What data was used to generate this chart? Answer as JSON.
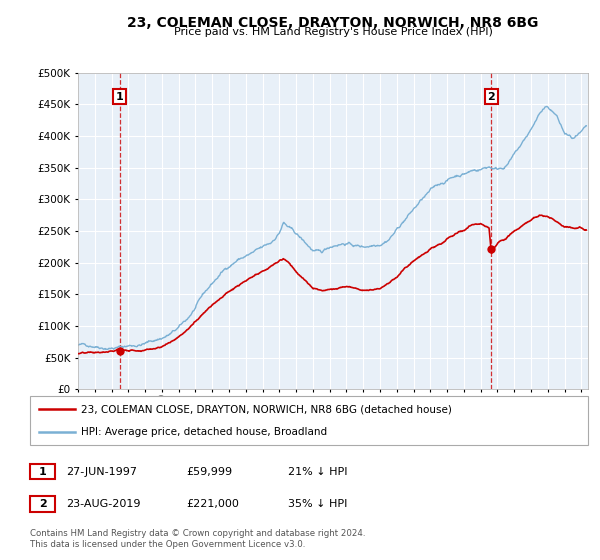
{
  "title": "23, COLEMAN CLOSE, DRAYTON, NORWICH, NR8 6BG",
  "subtitle": "Price paid vs. HM Land Registry's House Price Index (HPI)",
  "ylim": [
    0,
    500000
  ],
  "xlim_start": 1995.0,
  "xlim_end": 2025.4,
  "bg_color": "#e8f0f8",
  "fig_bg_color": "#ffffff",
  "grid_color": "#ffffff",
  "hpi_color": "#7ab0d4",
  "sale_color": "#cc0000",
  "sale1_x": 1997.48,
  "sale1_y": 59999,
  "sale2_x": 2019.64,
  "sale2_y": 221000,
  "legend_label1": "23, COLEMAN CLOSE, DRAYTON, NORWICH, NR8 6BG (detached house)",
  "legend_label2": "HPI: Average price, detached house, Broadland",
  "annotation1_label": "1",
  "annotation1_date": "27-JUN-1997",
  "annotation1_price": "£59,999",
  "annotation1_hpi": "21% ↓ HPI",
  "annotation2_label": "2",
  "annotation2_date": "23-AUG-2019",
  "annotation2_price": "£221,000",
  "annotation2_hpi": "35% ↓ HPI",
  "footnote": "Contains HM Land Registry data © Crown copyright and database right 2024.\nThis data is licensed under the Open Government Licence v3.0.",
  "hpi_anchors": [
    [
      1995.0,
      70000
    ],
    [
      1995.5,
      69000
    ],
    [
      1996.0,
      70500
    ],
    [
      1996.5,
      71000
    ],
    [
      1997.0,
      72000
    ],
    [
      1997.5,
      73000
    ],
    [
      1998.0,
      75000
    ],
    [
      1998.5,
      77000
    ],
    [
      1999.0,
      80000
    ],
    [
      1999.5,
      84000
    ],
    [
      2000.0,
      89000
    ],
    [
      2000.5,
      95000
    ],
    [
      2001.0,
      103000
    ],
    [
      2001.5,
      115000
    ],
    [
      2002.0,
      133000
    ],
    [
      2002.5,
      152000
    ],
    [
      2003.0,
      168000
    ],
    [
      2003.5,
      183000
    ],
    [
      2004.0,
      196000
    ],
    [
      2004.5,
      207000
    ],
    [
      2005.0,
      213000
    ],
    [
      2005.5,
      218000
    ],
    [
      2006.0,
      222000
    ],
    [
      2006.5,
      228000
    ],
    [
      2007.0,
      246000
    ],
    [
      2007.25,
      262000
    ],
    [
      2007.5,
      255000
    ],
    [
      2007.75,
      248000
    ],
    [
      2008.0,
      242000
    ],
    [
      2008.5,
      228000
    ],
    [
      2009.0,
      215000
    ],
    [
      2009.5,
      208000
    ],
    [
      2010.0,
      218000
    ],
    [
      2010.5,
      225000
    ],
    [
      2011.0,
      228000
    ],
    [
      2011.5,
      224000
    ],
    [
      2012.0,
      222000
    ],
    [
      2012.5,
      226000
    ],
    [
      2013.0,
      232000
    ],
    [
      2013.5,
      242000
    ],
    [
      2014.0,
      258000
    ],
    [
      2014.5,
      275000
    ],
    [
      2015.0,
      290000
    ],
    [
      2015.5,
      305000
    ],
    [
      2016.0,
      316000
    ],
    [
      2016.5,
      325000
    ],
    [
      2017.0,
      333000
    ],
    [
      2017.5,
      340000
    ],
    [
      2018.0,
      345000
    ],
    [
      2018.5,
      350000
    ],
    [
      2019.0,
      353000
    ],
    [
      2019.5,
      358000
    ],
    [
      2020.0,
      355000
    ],
    [
      2020.5,
      362000
    ],
    [
      2021.0,
      378000
    ],
    [
      2021.5,
      395000
    ],
    [
      2022.0,
      415000
    ],
    [
      2022.5,
      440000
    ],
    [
      2023.0,
      448000
    ],
    [
      2023.5,
      435000
    ],
    [
      2024.0,
      405000
    ],
    [
      2024.5,
      395000
    ],
    [
      2025.0,
      400000
    ],
    [
      2025.3,
      405000
    ]
  ],
  "sale_anchors": [
    [
      1995.0,
      56000
    ],
    [
      1995.5,
      55500
    ],
    [
      1996.0,
      55000
    ],
    [
      1996.5,
      55500
    ],
    [
      1997.0,
      56000
    ],
    [
      1997.48,
      59999
    ],
    [
      1998.0,
      58000
    ],
    [
      1998.5,
      59000
    ],
    [
      1999.0,
      62000
    ],
    [
      1999.5,
      65000
    ],
    [
      2000.0,
      70000
    ],
    [
      2000.5,
      77000
    ],
    [
      2001.0,
      86000
    ],
    [
      2001.5,
      97000
    ],
    [
      2002.0,
      110000
    ],
    [
      2002.5,
      126000
    ],
    [
      2003.0,
      140000
    ],
    [
      2003.5,
      152000
    ],
    [
      2004.0,
      162000
    ],
    [
      2004.5,
      170000
    ],
    [
      2005.0,
      177000
    ],
    [
      2005.5,
      183000
    ],
    [
      2006.0,
      188000
    ],
    [
      2006.5,
      196000
    ],
    [
      2007.0,
      205000
    ],
    [
      2007.25,
      208000
    ],
    [
      2007.5,
      204000
    ],
    [
      2007.75,
      198000
    ],
    [
      2008.0,
      190000
    ],
    [
      2008.5,
      176000
    ],
    [
      2009.0,
      162000
    ],
    [
      2009.5,
      157000
    ],
    [
      2010.0,
      161000
    ],
    [
      2010.5,
      165000
    ],
    [
      2011.0,
      167000
    ],
    [
      2011.5,
      164000
    ],
    [
      2012.0,
      163000
    ],
    [
      2012.5,
      166000
    ],
    [
      2013.0,
      170000
    ],
    [
      2013.5,
      178000
    ],
    [
      2014.0,
      190000
    ],
    [
      2014.5,
      202000
    ],
    [
      2015.0,
      213000
    ],
    [
      2015.5,
      222000
    ],
    [
      2016.0,
      230000
    ],
    [
      2016.5,
      237000
    ],
    [
      2017.0,
      244000
    ],
    [
      2017.5,
      252000
    ],
    [
      2018.0,
      258000
    ],
    [
      2018.5,
      265000
    ],
    [
      2019.0,
      268000
    ],
    [
      2019.5,
      262000
    ],
    [
      2019.64,
      221000
    ],
    [
      2020.0,
      235000
    ],
    [
      2020.5,
      242000
    ],
    [
      2021.0,
      252000
    ],
    [
      2021.5,
      258000
    ],
    [
      2022.0,
      268000
    ],
    [
      2022.5,
      278000
    ],
    [
      2023.0,
      275000
    ],
    [
      2023.5,
      268000
    ],
    [
      2024.0,
      262000
    ],
    [
      2024.5,
      260000
    ],
    [
      2025.0,
      263000
    ],
    [
      2025.3,
      260000
    ]
  ]
}
